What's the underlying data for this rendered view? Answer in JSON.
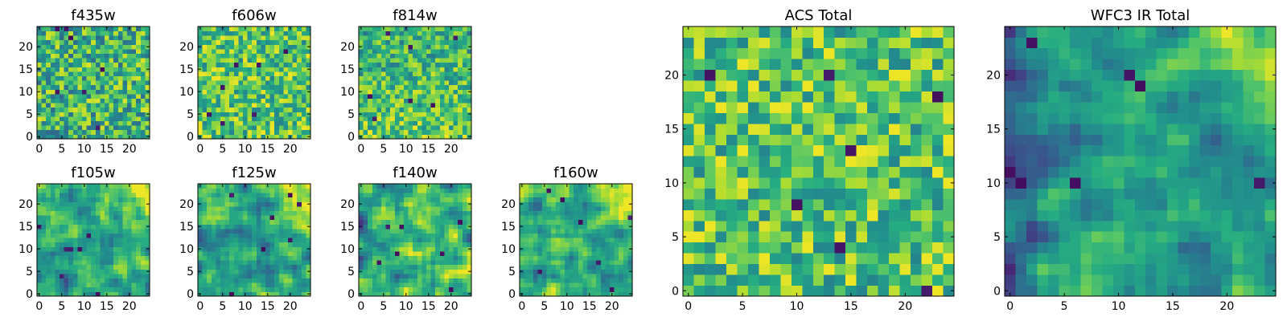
{
  "chart_data": {
    "type": "heatmap",
    "colormap": "viridis",
    "grid": false,
    "panels": [
      {
        "title": "f435w",
        "xticks": [
          "0",
          "5",
          "10",
          "15",
          "20"
        ],
        "yticks": [
          "0",
          "5",
          "10",
          "15",
          "20"
        ],
        "xlim": [
          0,
          25
        ],
        "ylim": [
          0,
          25
        ],
        "pattern": "noise-uniform"
      },
      {
        "title": "f606w",
        "xticks": [
          "0",
          "5",
          "10",
          "15",
          "20"
        ],
        "yticks": [
          "0",
          "5",
          "10",
          "15",
          "20"
        ],
        "xlim": [
          0,
          25
        ],
        "ylim": [
          0,
          25
        ],
        "pattern": "noise-bright"
      },
      {
        "title": "f814w",
        "xticks": [
          "0",
          "5",
          "10",
          "15",
          "20"
        ],
        "yticks": [
          "0",
          "5",
          "10",
          "15",
          "20"
        ],
        "xlim": [
          0,
          25
        ],
        "ylim": [
          0,
          25
        ],
        "pattern": "noise-bright-bottom"
      },
      {
        "title": "f105w",
        "xticks": [
          "0",
          "5",
          "10",
          "15",
          "20"
        ],
        "yticks": [
          "0",
          "5",
          "10",
          "15",
          "20"
        ],
        "xlim": [
          0,
          25
        ],
        "ylim": [
          0,
          25
        ],
        "pattern": "smooth-bright-top-right"
      },
      {
        "title": "f125w",
        "xticks": [
          "0",
          "5",
          "10",
          "15",
          "20"
        ],
        "yticks": [
          "0",
          "5",
          "10",
          "15",
          "20"
        ],
        "xlim": [
          0,
          25
        ],
        "ylim": [
          0,
          25
        ],
        "pattern": "smooth-bright-top-right"
      },
      {
        "title": "f140w",
        "xticks": [
          "0",
          "5",
          "10",
          "15",
          "20"
        ],
        "yticks": [
          "0",
          "5",
          "10",
          "15",
          "20"
        ],
        "xlim": [
          0,
          25
        ],
        "ylim": [
          0,
          25
        ],
        "pattern": "smooth-dark-left"
      },
      {
        "title": "f160w",
        "xticks": [
          "0",
          "5",
          "10",
          "15",
          "20"
        ],
        "yticks": [
          "0",
          "5",
          "10",
          "15",
          "20"
        ],
        "xlim": [
          0,
          25
        ],
        "ylim": [
          0,
          25
        ],
        "pattern": "smooth-bright-top-right"
      },
      {
        "title": "ACS Total",
        "xticks": [
          "0",
          "5",
          "10",
          "15",
          "20"
        ],
        "yticks": [
          "0",
          "5",
          "10",
          "15",
          "20"
        ],
        "xlim": [
          0,
          25
        ],
        "ylim": [
          0,
          25
        ],
        "pattern": "noise-bright"
      },
      {
        "title": "WFC3 IR Total",
        "xticks": [
          "0",
          "5",
          "10",
          "15",
          "20"
        ],
        "yticks": [
          "0",
          "5",
          "10",
          "15",
          "20"
        ],
        "xlim": [
          0,
          25
        ],
        "ylim": [
          0,
          25
        ],
        "pattern": "smooth-bright-top-right-dark-left"
      }
    ]
  }
}
